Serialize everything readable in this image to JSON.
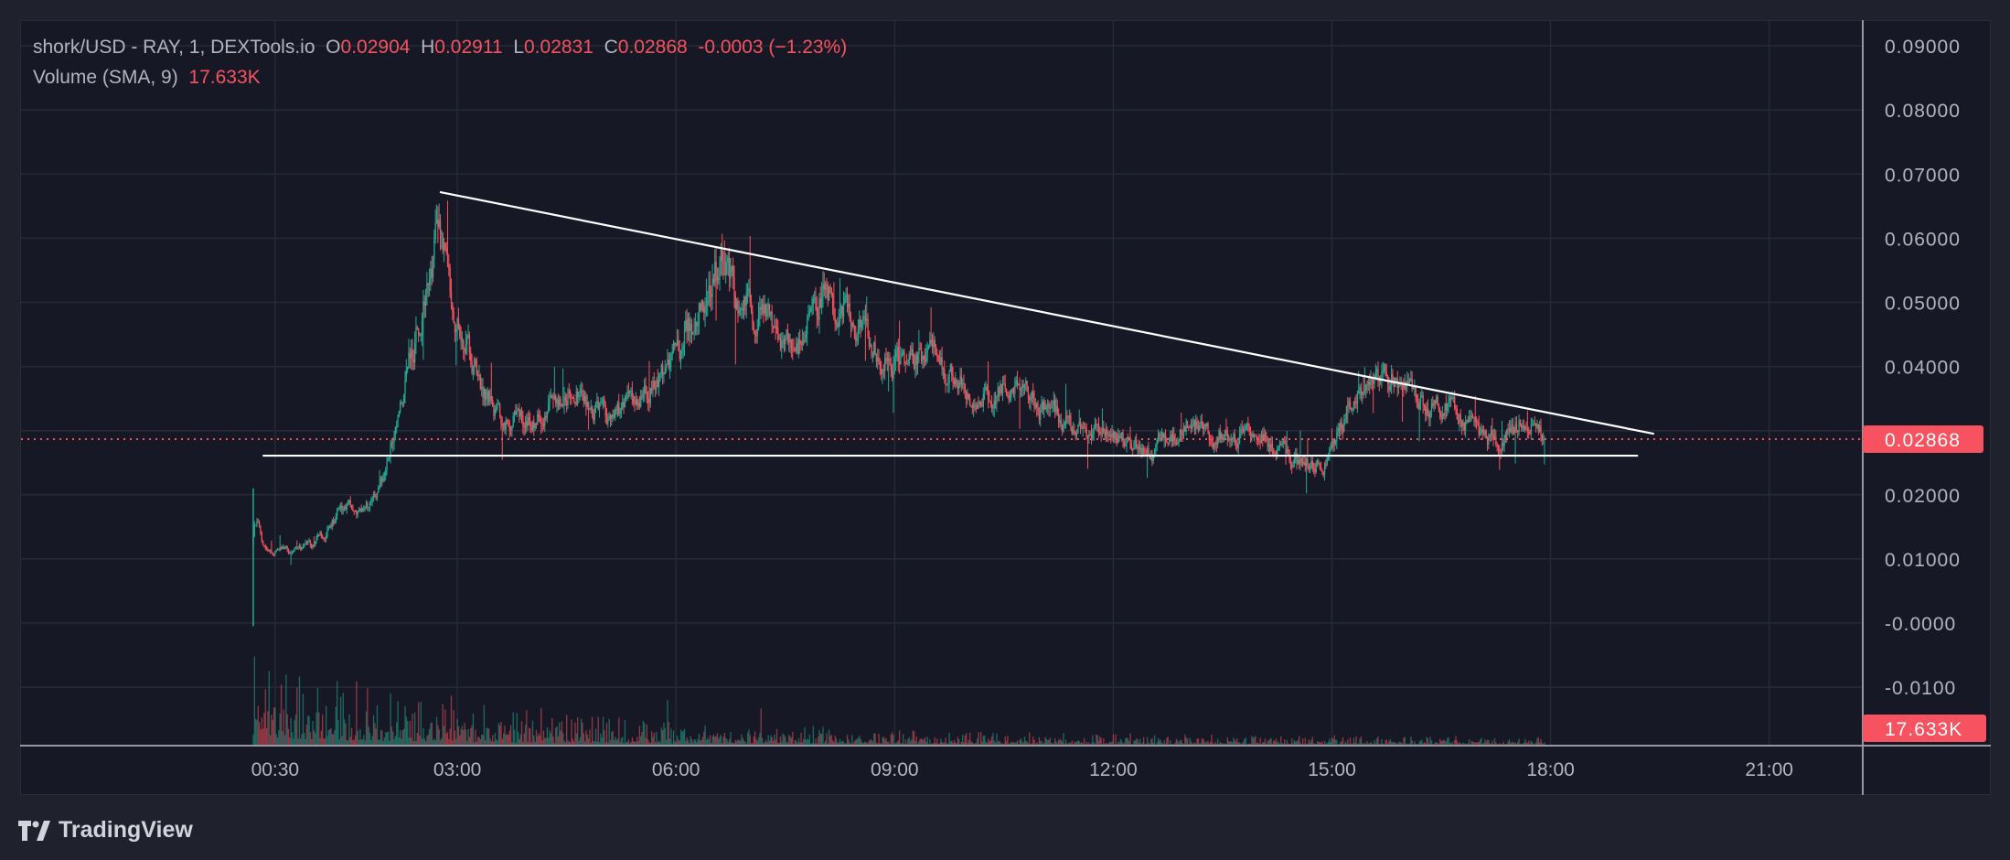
{
  "legend": {
    "symbol": "shork/USD - RAY, 1, DEXTools.io",
    "open_label": "O",
    "open": "0.02904",
    "high_label": "H",
    "high": "0.02911",
    "low_label": "L",
    "low": "0.02831",
    "close_label": "C",
    "close": "0.02868",
    "change": "-0.0003 (−1.23%)",
    "volume_label": "Volume (SMA, 9)",
    "volume_value": "17.633K"
  },
  "price_badge": "0.02868",
  "volume_badge": "17.633K",
  "branding": "TradingView",
  "colors": {
    "up": "#22ab94",
    "down": "#f7525f",
    "background": "#161925",
    "grid": "#262a36",
    "drawing": "#ffffff"
  },
  "chart_data": {
    "type": "candlestick",
    "interval": "1 minute",
    "y_tick_labels": [
      "0.09000",
      "0.08000",
      "0.07000",
      "0.06000",
      "0.05000",
      "0.04000",
      "0.02000",
      "0.01000",
      "-0.0000",
      "-0.0100"
    ],
    "y_tick_values": [
      0.09,
      0.08,
      0.07,
      0.06,
      0.05,
      0.04,
      0.02,
      0.01,
      0.0,
      -0.01
    ],
    "x_tick_labels": [
      "00:30",
      "03:00",
      "06:00",
      "09:00",
      "12:00",
      "15:00",
      "18:00",
      "21:00"
    ],
    "x_tick_hours": [
      0.5,
      3,
      6,
      9,
      12,
      15,
      18,
      21
    ],
    "ylim": [
      -0.0135,
      0.0925
    ],
    "xlim_hours": [
      -0.5,
      22.2
    ],
    "grid": true,
    "last_price": 0.02868,
    "approx_price_path": [
      [
        0.17,
        0.0
      ],
      [
        0.2,
        0.018
      ],
      [
        0.3,
        0.012
      ],
      [
        0.5,
        0.011
      ],
      [
        1.0,
        0.012
      ],
      [
        1.4,
        0.018
      ],
      [
        1.7,
        0.017
      ],
      [
        1.9,
        0.02
      ],
      [
        2.1,
        0.03
      ],
      [
        2.3,
        0.04
      ],
      [
        2.55,
        0.05
      ],
      [
        2.75,
        0.064
      ],
      [
        2.9,
        0.05
      ],
      [
        3.2,
        0.04
      ],
      [
        3.5,
        0.032
      ],
      [
        4.0,
        0.031
      ],
      [
        4.5,
        0.037
      ],
      [
        5.0,
        0.032
      ],
      [
        5.5,
        0.035
      ],
      [
        5.9,
        0.041
      ],
      [
        6.2,
        0.047
      ],
      [
        6.6,
        0.058
      ],
      [
        6.8,
        0.051
      ],
      [
        7.3,
        0.046
      ],
      [
        7.7,
        0.044
      ],
      [
        8.0,
        0.053
      ],
      [
        8.3,
        0.048
      ],
      [
        8.7,
        0.043
      ],
      [
        9.0,
        0.04
      ],
      [
        9.5,
        0.042
      ],
      [
        10.0,
        0.035
      ],
      [
        10.5,
        0.036
      ],
      [
        11.0,
        0.034
      ],
      [
        11.5,
        0.03
      ],
      [
        12.0,
        0.029
      ],
      [
        12.5,
        0.027
      ],
      [
        13.0,
        0.031
      ],
      [
        13.5,
        0.029
      ],
      [
        14.0,
        0.029
      ],
      [
        14.5,
        0.025
      ],
      [
        14.9,
        0.025
      ],
      [
        15.2,
        0.034
      ],
      [
        15.5,
        0.036
      ],
      [
        15.8,
        0.039
      ],
      [
        16.2,
        0.033
      ],
      [
        16.6,
        0.034
      ],
      [
        17.0,
        0.029
      ],
      [
        17.3,
        0.028
      ],
      [
        17.6,
        0.033
      ],
      [
        17.92,
        0.0287
      ]
    ],
    "drawings": [
      {
        "type": "trendline",
        "from": [
          2.76,
          0.0672
        ],
        "to": [
          19.42,
          0.0295
        ]
      },
      {
        "type": "horizontal-segment",
        "price": 0.0261,
        "from_hour": 0.33,
        "to_hour": 19.2
      }
    ]
  }
}
